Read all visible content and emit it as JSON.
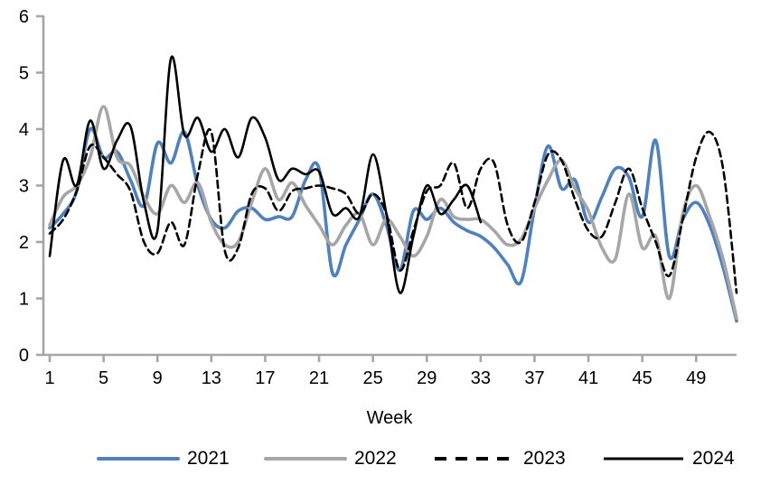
{
  "chart_data": {
    "type": "line",
    "title": "",
    "xlabel": "Week",
    "xlim": [
      1,
      52
    ],
    "ylim": [
      0,
      6
    ],
    "xticks": [
      1,
      5,
      9,
      13,
      17,
      21,
      25,
      29,
      33,
      37,
      41,
      45,
      49
    ],
    "yticks": [
      0,
      1,
      2,
      3,
      4,
      5,
      6
    ],
    "grid": false,
    "legend_position": "bottom",
    "axis_color": "#a6a6a6",
    "text_color": "#000000",
    "series": [
      {
        "name": "2021",
        "color": "#4f81bd",
        "style": "solid",
        "width": 3.6,
        "start_week": 1,
        "values": [
          2.25,
          2.5,
          2.9,
          4.0,
          3.5,
          3.6,
          3.1,
          2.65,
          3.75,
          3.4,
          3.95,
          3.0,
          2.4,
          2.25,
          2.55,
          2.6,
          2.4,
          2.45,
          2.45,
          3.1,
          3.3,
          1.45,
          1.95,
          2.4,
          2.85,
          2.3,
          1.5,
          2.55,
          2.4,
          2.6,
          2.35,
          2.2,
          2.1,
          1.9,
          1.6,
          1.3,
          2.6,
          3.7,
          2.95,
          3.1,
          2.35,
          2.8,
          3.3,
          3.15,
          2.45,
          3.8,
          1.75,
          2.4,
          2.7,
          2.3,
          1.55,
          0.6
        ]
      },
      {
        "name": "2022",
        "color": "#a6a6a6",
        "style": "solid",
        "width": 3.6,
        "start_week": 1,
        "values": [
          2.3,
          2.8,
          3.0,
          3.5,
          4.4,
          3.5,
          3.35,
          2.8,
          2.5,
          3.0,
          2.7,
          3.05,
          2.35,
          1.95,
          2.0,
          2.7,
          3.3,
          2.75,
          3.05,
          2.65,
          2.3,
          1.95,
          2.3,
          2.5,
          1.95,
          2.4,
          2.1,
          1.75,
          2.1,
          2.75,
          2.45,
          2.4,
          2.4,
          2.2,
          1.95,
          2.05,
          2.6,
          3.1,
          3.45,
          2.95,
          2.55,
          1.9,
          1.7,
          2.85,
          1.9,
          2.1,
          1.0,
          2.5,
          3.0,
          2.45,
          1.7,
          0.65
        ]
      },
      {
        "name": "2023",
        "color": "#000000",
        "style": "dashed",
        "width": 2.6,
        "start_week": 1,
        "values": [
          2.15,
          2.4,
          2.9,
          3.7,
          3.5,
          3.2,
          2.9,
          2.0,
          1.8,
          2.35,
          1.95,
          3.2,
          3.95,
          1.85,
          1.9,
          2.85,
          2.95,
          2.55,
          2.9,
          2.95,
          3.0,
          2.95,
          2.85,
          2.5,
          2.85,
          2.5,
          1.5,
          2.2,
          2.9,
          3.0,
          3.4,
          2.6,
          3.3,
          3.4,
          2.3,
          2.0,
          2.7,
          3.55,
          3.45,
          2.75,
          2.2,
          2.1,
          2.7,
          3.3,
          2.6,
          2.0,
          1.4,
          2.4,
          3.5,
          3.95,
          3.3,
          1.1
        ]
      },
      {
        "name": "2024",
        "color": "#000000",
        "style": "solid",
        "width": 2.6,
        "start_week": 1,
        "values": [
          1.75,
          3.45,
          3.0,
          4.15,
          3.3,
          3.8,
          4.05,
          2.7,
          2.2,
          5.25,
          3.9,
          4.2,
          3.6,
          4.0,
          3.5,
          4.2,
          3.85,
          3.1,
          3.3,
          3.2,
          3.25,
          2.5,
          2.6,
          2.45,
          3.55,
          2.5,
          1.1,
          2.1,
          3.0,
          2.5,
          2.75,
          3.0,
          2.35
        ]
      }
    ]
  },
  "layout_text": {
    "legend": [
      "2021",
      "2022",
      "2023",
      "2024"
    ]
  }
}
